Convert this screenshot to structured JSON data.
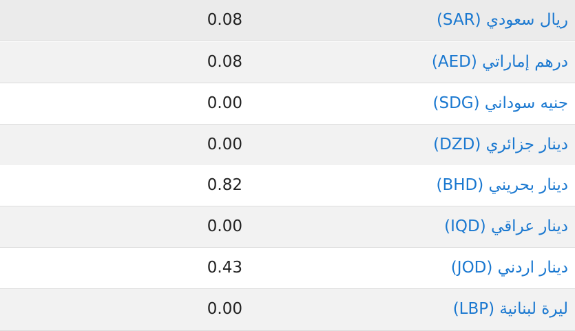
{
  "table": {
    "rows": [
      [
        "ريال سعودي (SAR)",
        "0.08"
      ],
      [
        "درهم إماراتي (AED)",
        "0.08"
      ],
      [
        "جنيه سوداني (SDG)",
        "0.00"
      ],
      [
        "دينار جزائري (DZD)",
        "0.00"
      ],
      [
        "دينار بحريني (BHD)",
        "0.82"
      ],
      [
        "دينار عراقي (IQD)",
        "0.00"
      ],
      [
        "دينار اردني (JOD)",
        "0.43"
      ],
      [
        "ليرة لبنانية (LBP)",
        "0.00"
      ]
    ]
  }
}
